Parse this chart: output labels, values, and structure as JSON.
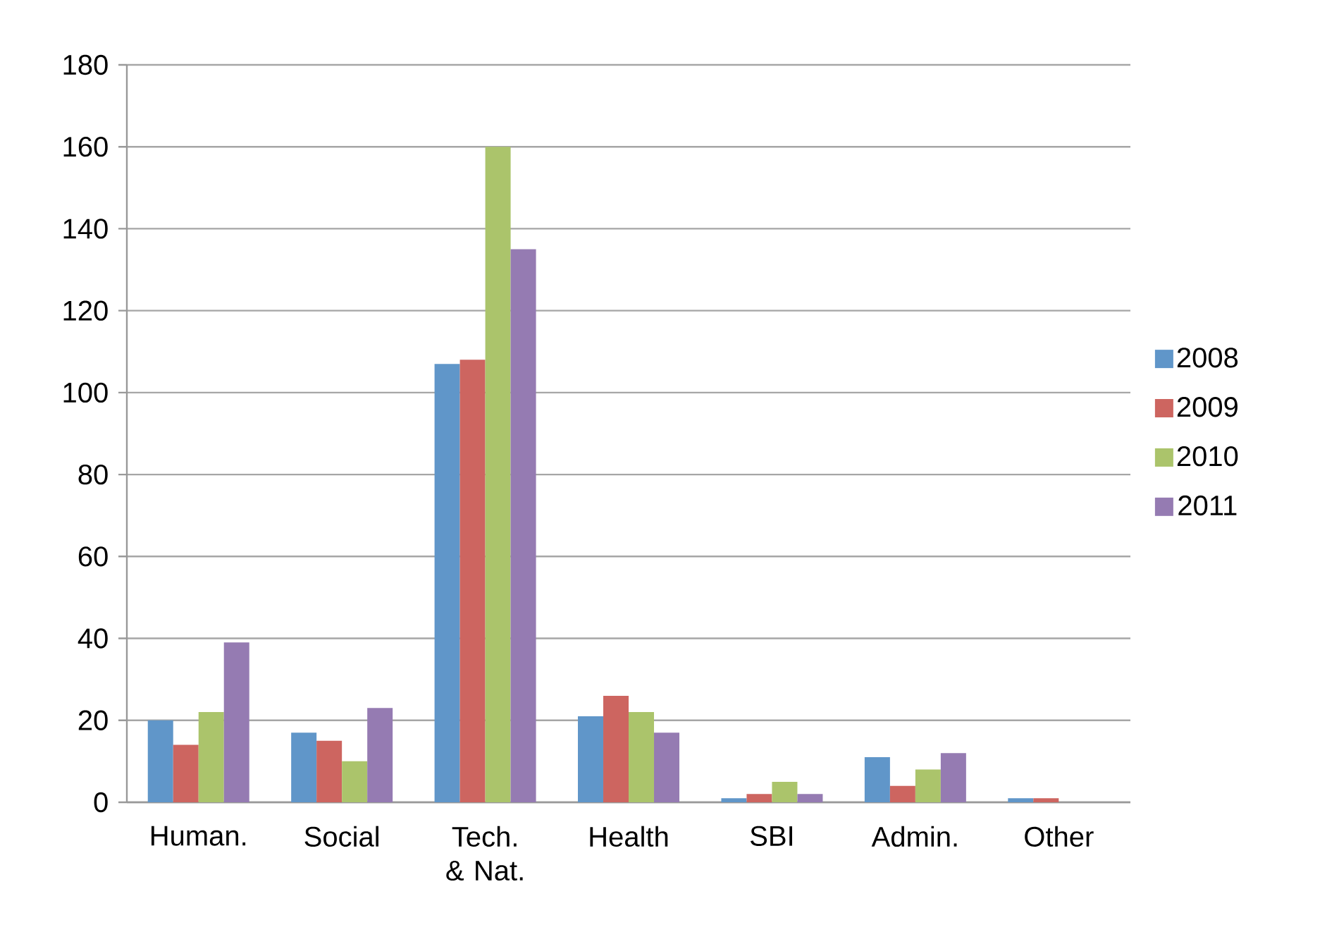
{
  "chart_data": {
    "type": "bar",
    "categories": [
      "Human.",
      "Social",
      "Tech. & Nat.",
      "Health",
      "SBI",
      "Admin.",
      "Other"
    ],
    "series": [
      {
        "name": "2008",
        "color": "#6096c9",
        "values": [
          20,
          17,
          107,
          21,
          1,
          11,
          1
        ]
      },
      {
        "name": "2009",
        "color": "#cd6560",
        "values": [
          14,
          15,
          108,
          26,
          2,
          4,
          1
        ]
      },
      {
        "name": "2010",
        "color": "#abc46b",
        "values": [
          22,
          10,
          160,
          22,
          5,
          8,
          0
        ]
      },
      {
        "name": "2011",
        "color": "#957bb2",
        "values": [
          39,
          23,
          135,
          17,
          2,
          12,
          0
        ]
      }
    ],
    "ylim": [
      0,
      180
    ],
    "yticks": [
      0,
      20,
      40,
      60,
      80,
      100,
      120,
      140,
      160,
      180
    ],
    "grid": "y",
    "legend": "right"
  }
}
